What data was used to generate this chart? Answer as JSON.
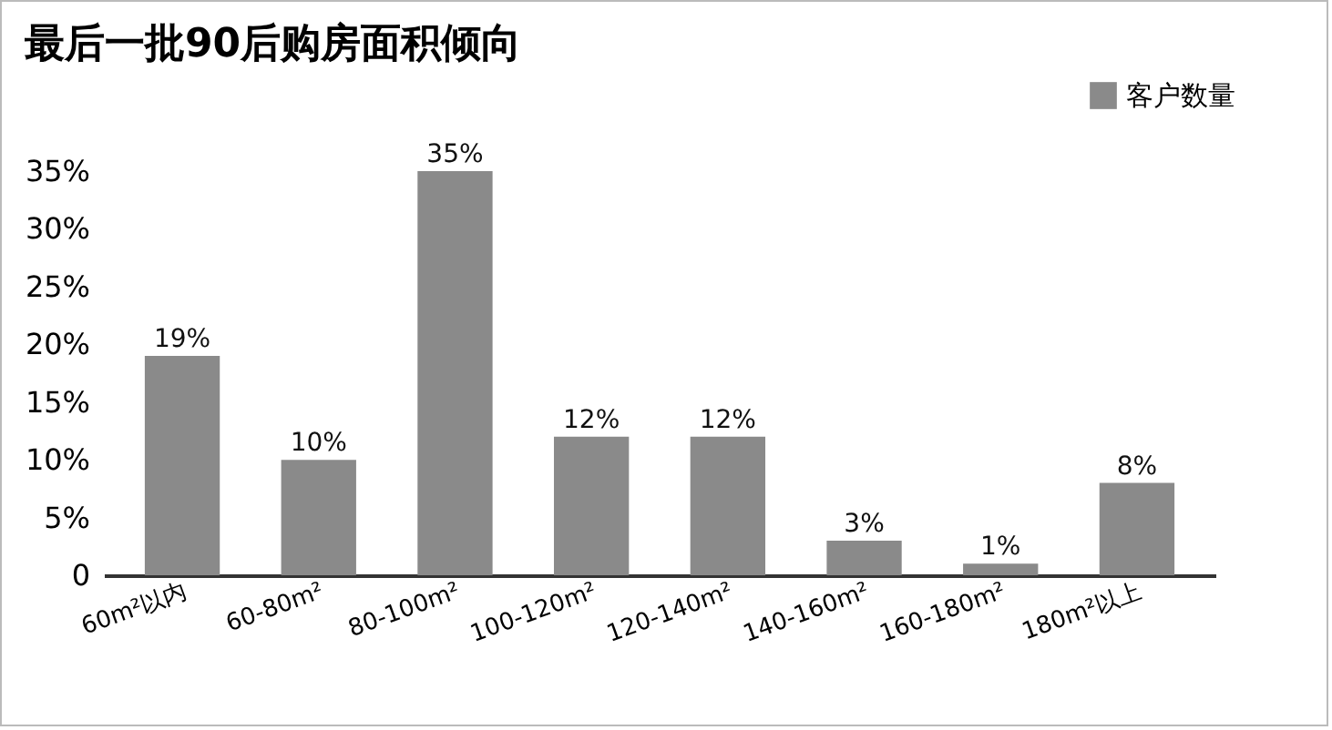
{
  "chart_data": {
    "type": "bar",
    "title": "最后一批90后购房面积倾向",
    "categories": [
      "60m²以内",
      "60-80m²",
      "80-100m²",
      "100-120m²",
      "120-140m²",
      "140-160m²",
      "160-180m²",
      "180m²以上"
    ],
    "series": [
      {
        "name": "客户数量",
        "color": "#8a8a8a",
        "values": [
          19,
          10,
          35,
          12,
          12,
          3,
          1,
          8
        ],
        "value_labels": [
          "19%",
          "10%",
          "35%",
          "12%",
          "12%",
          "3%",
          "1%",
          "8%"
        ]
      }
    ],
    "ylim": [
      0,
      35
    ],
    "yticks": [
      {
        "value": 0,
        "label": "0"
      },
      {
        "value": 5,
        "label": "5%"
      },
      {
        "value": 10,
        "label": "10%"
      },
      {
        "value": 15,
        "label": "15%"
      },
      {
        "value": 20,
        "label": "20%"
      },
      {
        "value": 25,
        "label": "25%"
      },
      {
        "value": 30,
        "label": "30%"
      },
      {
        "value": 35,
        "label": "35%"
      }
    ],
    "grid": false,
    "legend": "top right"
  }
}
